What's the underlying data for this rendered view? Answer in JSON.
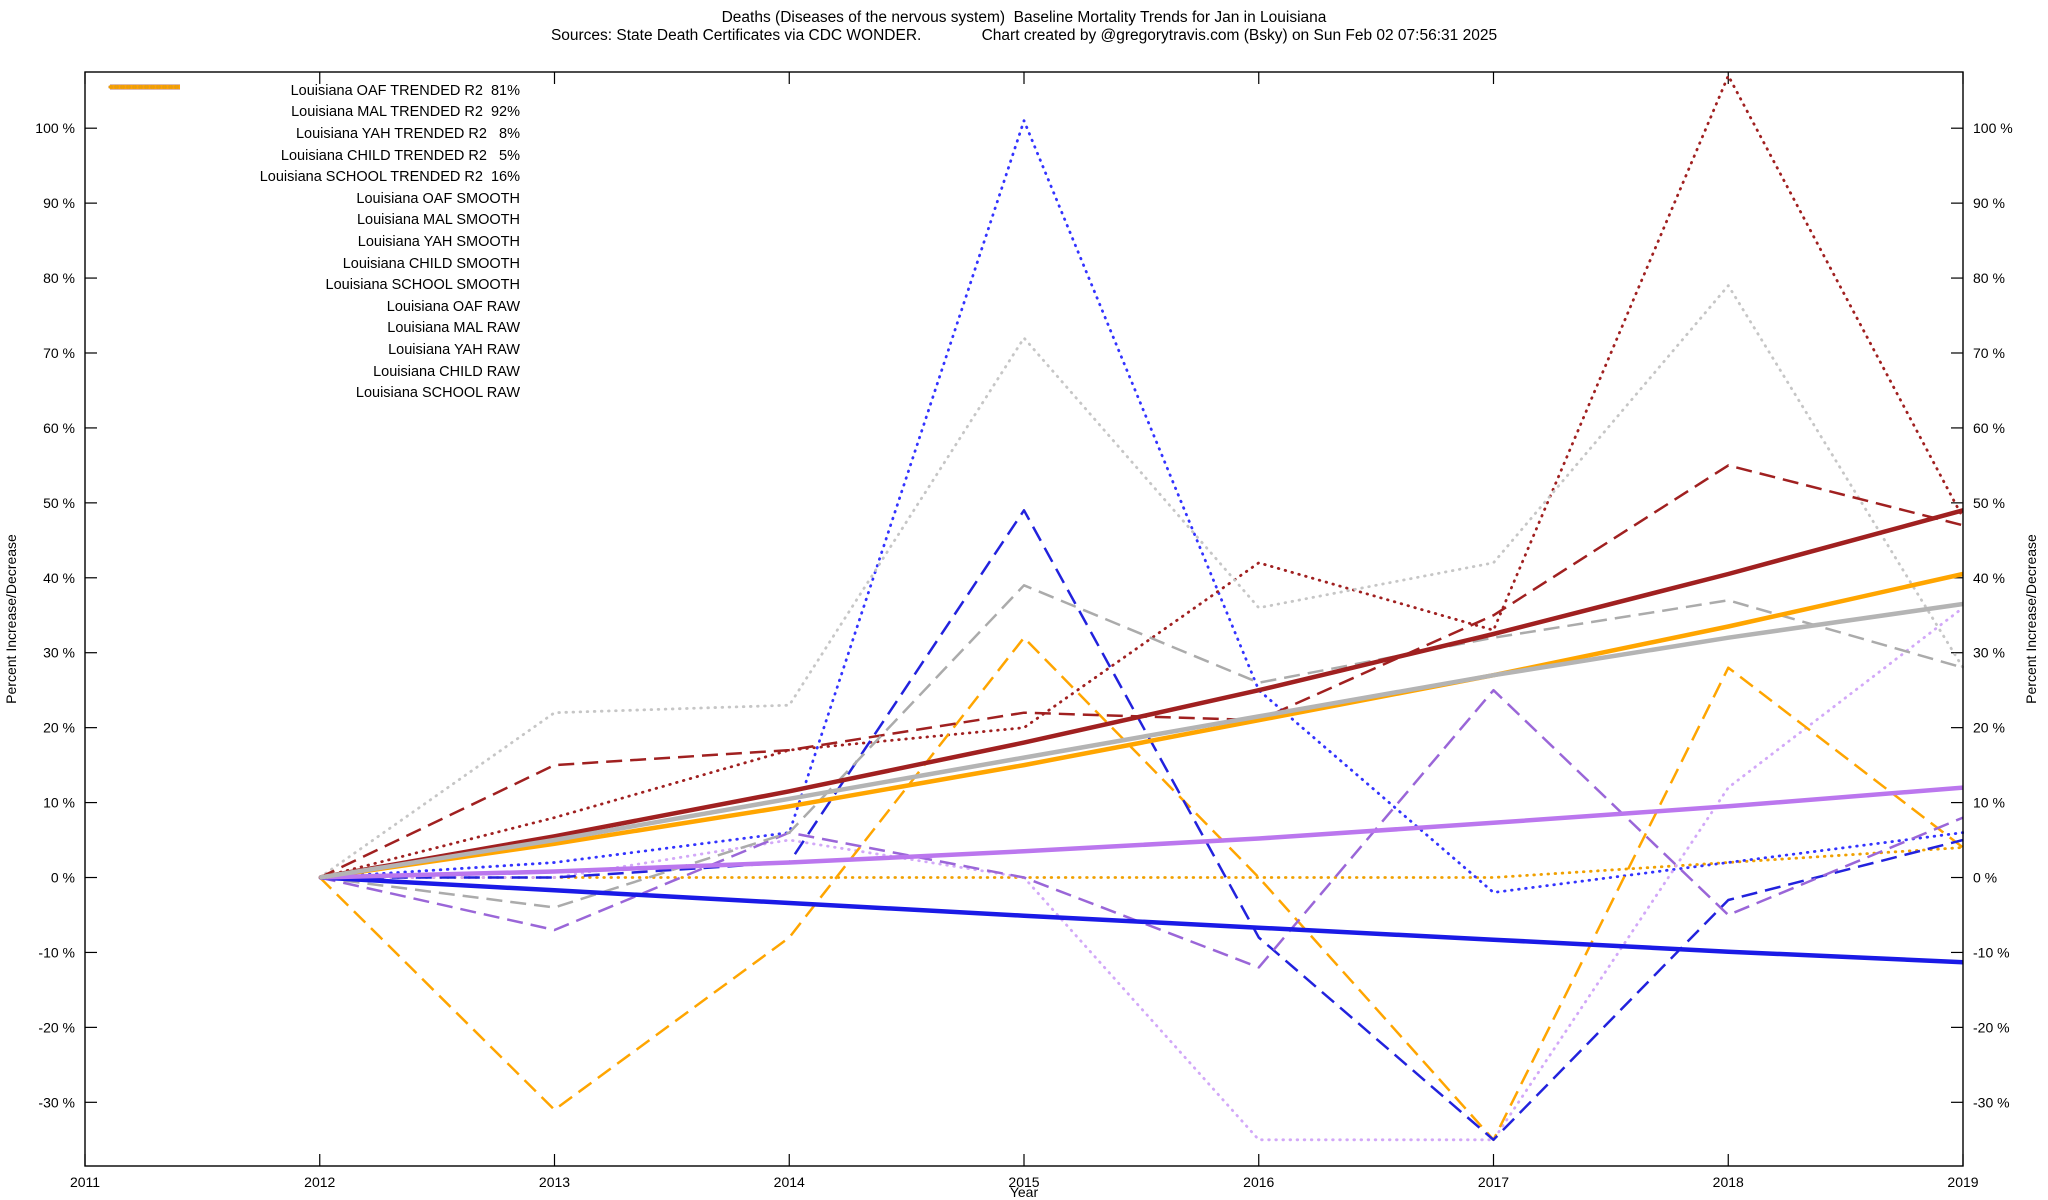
{
  "title": "Deaths (Diseases of the nervous system)  Baseline Mortality Trends for Jan in Louisiana",
  "subtitle": "Sources: State Death Certificates via CDC WONDER.              Chart created by @gregorytravis.com (Bsky) on Sun Feb 02 07:56:31 2025",
  "chart_data": {
    "type": "line",
    "title": "Deaths (Diseases of the nervous system)  Baseline Mortality Trends for Jan in Louisiana",
    "xlabel": "Year",
    "ylabel_left": "Percent Increase/Decrease",
    "ylabel_right": "Percent Increase/Decrease",
    "xlim": [
      2011,
      2019
    ],
    "ylim": [
      -38.5,
      107.5
    ],
    "xticks": [
      2011,
      2012,
      2013,
      2014,
      2015,
      2016,
      2017,
      2018,
      2019
    ],
    "yticks": [
      -30,
      -20,
      -10,
      0,
      10,
      20,
      30,
      40,
      50,
      60,
      70,
      80,
      90,
      100
    ],
    "ytick_suffix": " %",
    "grid": false,
    "legend_position": "top-left",
    "x": [
      2012,
      2013,
      2014,
      2015,
      2016,
      2017,
      2018,
      2019
    ],
    "series": [
      {
        "name": "Louisiana OAF TRENDED R2  81%",
        "group": "trended",
        "color": "#b4b4b4",
        "width": 4.5,
        "dash": "solid",
        "values": [
          0,
          5,
          10.5,
          16,
          21.5,
          27,
          32,
          36.5
        ]
      },
      {
        "name": "Louisiana MAL TRENDED R2  92%",
        "group": "trended",
        "color": "#a02020",
        "width": 4.5,
        "dash": "solid",
        "values": [
          0,
          5.5,
          11.5,
          18,
          25,
          32.5,
          40.5,
          49
        ]
      },
      {
        "name": "Louisiana YAH TRENDED R2   8%",
        "group": "trended",
        "color": "#bb77ee",
        "width": 4.5,
        "dash": "solid",
        "values": [
          0,
          0.8,
          2,
          3.5,
          5.2,
          7.3,
          9.5,
          12
        ]
      },
      {
        "name": "Louisiana CHILD TRENDED R2   5%",
        "group": "trended",
        "color": "#1a1ae6",
        "width": 4.5,
        "dash": "solid",
        "values": [
          0,
          -1.7,
          -3.4,
          -5.1,
          -6.7,
          -8.3,
          -9.9,
          -11.3
        ]
      },
      {
        "name": "Louisiana SCHOOL TRENDED R2  16%",
        "group": "trended",
        "color": "#ffa500",
        "width": 4.5,
        "dash": "solid",
        "values": [
          0,
          4.5,
          9.5,
          15,
          21,
          27,
          33.5,
          40.5
        ]
      },
      {
        "name": "Louisiana OAF SMOOTH",
        "group": "smooth",
        "color": "#ababab",
        "width": 2.5,
        "dash": "dashed",
        "values": [
          0,
          -4,
          6,
          39,
          26,
          32,
          37,
          28
        ]
      },
      {
        "name": "Louisiana MAL SMOOTH",
        "group": "smooth",
        "color": "#a02020",
        "width": 2.5,
        "dash": "dashed",
        "values": [
          0,
          15,
          17,
          22,
          21,
          35,
          55,
          47
        ]
      },
      {
        "name": "Louisiana YAH SMOOTH",
        "group": "smooth",
        "color": "#9a66d8",
        "width": 2.5,
        "dash": "dashed",
        "values": [
          0,
          -7,
          6,
          0,
          -12,
          25,
          -5,
          8
        ]
      },
      {
        "name": "Louisiana CHILD SMOOTH",
        "group": "smooth",
        "color": "#2222dd",
        "width": 2.5,
        "dash": "dashed",
        "values": [
          0,
          0,
          2,
          49,
          -8,
          -35,
          -3,
          5
        ]
      },
      {
        "name": "Louisiana SCHOOL SMOOTH",
        "group": "smooth",
        "color": "#ffa500",
        "width": 2.5,
        "dash": "dashed",
        "values": [
          0,
          -31,
          -8,
          32,
          0,
          -35,
          28,
          4
        ]
      },
      {
        "name": "Louisiana OAF RAW",
        "group": "raw",
        "color": "#c6c6c6",
        "width": 2.8,
        "dash": "dotted",
        "values": [
          0,
          22,
          23,
          72,
          36,
          42,
          79,
          28
        ]
      },
      {
        "name": "Louisiana MAL RAW",
        "group": "raw",
        "color": "#a02020",
        "width": 2.8,
        "dash": "dotted",
        "values": [
          0,
          8,
          17,
          20,
          42,
          33,
          107,
          48
        ]
      },
      {
        "name": "Louisiana YAH RAW",
        "group": "raw",
        "color": "#d2a8f8",
        "width": 2.8,
        "dash": "dotted",
        "values": [
          0,
          0,
          5,
          0,
          -35,
          -35,
          12,
          36
        ]
      },
      {
        "name": "Louisiana CHILD RAW",
        "group": "raw",
        "color": "#3333ff",
        "width": 2.8,
        "dash": "dotted",
        "values": [
          0,
          2,
          6,
          101,
          25,
          -2,
          2,
          6
        ]
      },
      {
        "name": "Louisiana SCHOOL RAW",
        "group": "raw",
        "color": "#f0a000",
        "width": 2.8,
        "dash": "dotted",
        "values": [
          0,
          0,
          0,
          0,
          0,
          0,
          2,
          4
        ]
      }
    ]
  }
}
